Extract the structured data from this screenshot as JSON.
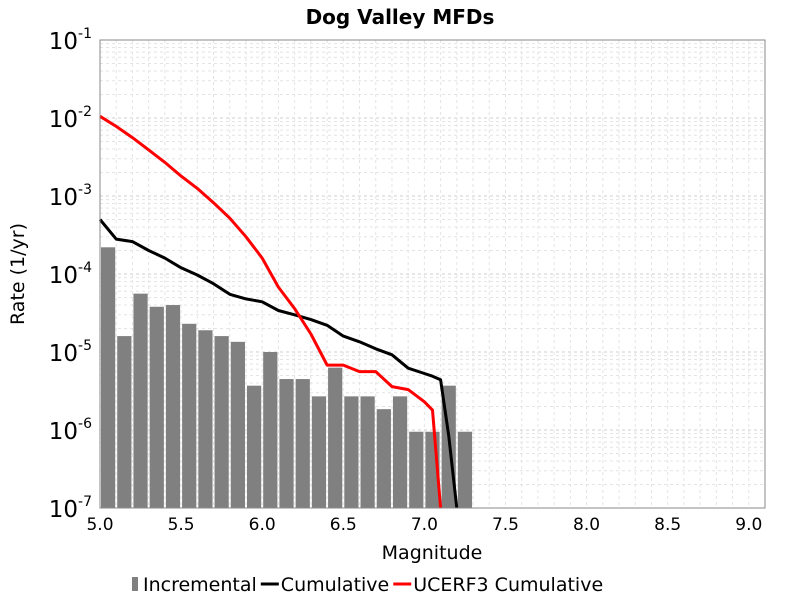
{
  "chart_data": {
    "type": "bar",
    "title": "Dog Valley MFDs",
    "xlabel": "Magnitude",
    "ylabel": "Rate (1/yr)",
    "xlim": [
      5.0,
      9.1
    ],
    "ylim": [
      1e-07,
      0.1
    ],
    "y_scale": "log",
    "grid": true,
    "legend_position": "bottom",
    "x_ticks": [
      "5.0",
      "5.5",
      "6.0",
      "6.5",
      "7.0",
      "7.5",
      "8.0",
      "8.5",
      "9.0"
    ],
    "y_ticks": [
      {
        "base": "10",
        "exp": "-7"
      },
      {
        "base": "10",
        "exp": "-6"
      },
      {
        "base": "10",
        "exp": "-5"
      },
      {
        "base": "10",
        "exp": "-4"
      },
      {
        "base": "10",
        "exp": "-3"
      },
      {
        "base": "10",
        "exp": "-2"
      },
      {
        "base": "10",
        "exp": "-1"
      }
    ],
    "series": [
      {
        "name": "Incremental",
        "kind": "bar",
        "color": "#808080",
        "x": [
          5.0,
          5.1,
          5.2,
          5.3,
          5.4,
          5.5,
          5.6,
          5.7,
          5.8,
          5.9,
          6.0,
          6.1,
          6.2,
          6.3,
          6.4,
          6.5,
          6.6,
          6.7,
          6.8,
          6.9,
          7.0,
          7.1,
          7.2
        ],
        "values": [
          0.00022,
          1.6e-05,
          5.6e-05,
          3.8e-05,
          4e-05,
          2.3e-05,
          1.9e-05,
          1.6e-05,
          1.35e-05,
          3.7e-06,
          1e-05,
          4.5e-06,
          4.5e-06,
          2.7e-06,
          6.3e-06,
          2.7e-06,
          2.7e-06,
          1.85e-06,
          2.7e-06,
          9.5e-07,
          9.5e-07,
          3.7e-06,
          9.5e-07
        ]
      },
      {
        "name": "Cumulative",
        "kind": "line",
        "color": "#000000",
        "x": [
          5.0,
          5.1,
          5.2,
          5.3,
          5.4,
          5.5,
          5.6,
          5.7,
          5.8,
          5.9,
          6.0,
          6.1,
          6.2,
          6.3,
          6.4,
          6.5,
          6.6,
          6.7,
          6.8,
          6.9,
          7.0,
          7.05,
          7.1,
          7.15,
          7.2
        ],
        "values": [
          0.0005,
          0.00028,
          0.00026,
          0.0002,
          0.00016,
          0.00012,
          9.7e-05,
          7.5e-05,
          5.5e-05,
          4.8e-05,
          4.4e-05,
          3.4e-05,
          3e-05,
          2.6e-05,
          2.2e-05,
          1.6e-05,
          1.35e-05,
          1.1e-05,
          9.2e-06,
          6.2e-06,
          5.3e-06,
          4.9e-06,
          4.4e-06,
          8.5e-07,
          1e-07
        ]
      },
      {
        "name": "UCERF3 Cumulative",
        "kind": "line",
        "color": "#ff0000",
        "x": [
          5.0,
          5.1,
          5.2,
          5.3,
          5.4,
          5.5,
          5.6,
          5.7,
          5.8,
          5.9,
          6.0,
          6.1,
          6.2,
          6.3,
          6.4,
          6.5,
          6.6,
          6.7,
          6.8,
          6.9,
          7.0,
          7.05,
          7.1
        ],
        "values": [
          0.0105,
          0.0078,
          0.0056,
          0.0039,
          0.0027,
          0.0018,
          0.00125,
          0.00082,
          0.00052,
          0.0003,
          0.00016,
          6.8e-05,
          3.6e-05,
          1.7e-05,
          6.8e-06,
          6.8e-06,
          5.6e-06,
          5.6e-06,
          3.6e-06,
          3.3e-06,
          2.3e-06,
          1.8e-06,
          1e-07
        ]
      }
    ]
  }
}
